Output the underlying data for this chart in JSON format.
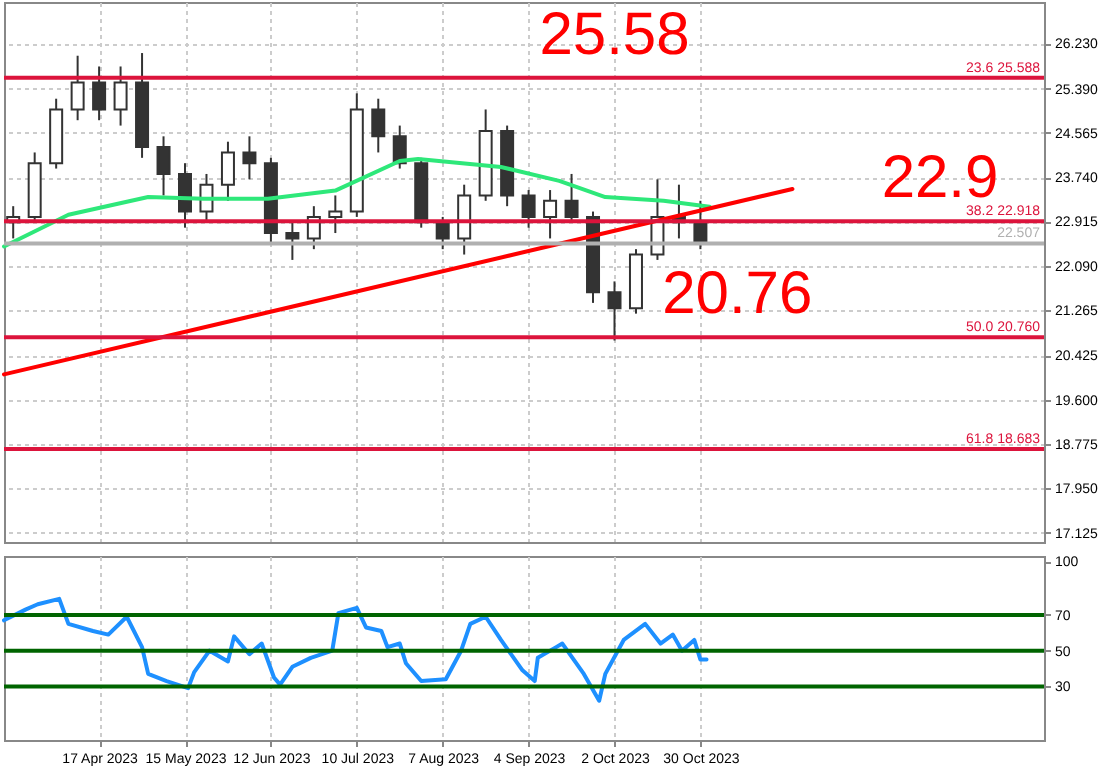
{
  "chart_data": [
    {
      "type": "candlestick",
      "x": [
        "2023-03-20",
        "2023-03-27",
        "2023-04-03",
        "2023-04-10",
        "2023-04-17",
        "2023-04-24",
        "2023-05-01",
        "2023-05-08",
        "2023-05-15",
        "2023-05-22",
        "2023-05-29",
        "2023-06-05",
        "2023-06-12",
        "2023-06-19",
        "2023-06-26",
        "2023-07-03",
        "2023-07-10",
        "2023-07-17",
        "2023-07-24",
        "2023-07-31",
        "2023-08-07",
        "2023-08-14",
        "2023-08-21",
        "2023-08-28",
        "2023-09-04",
        "2023-09-11",
        "2023-09-18",
        "2023-09-25",
        "2023-10-02",
        "2023-10-09",
        "2023-10-16",
        "2023-10-23",
        "2023-10-30"
      ],
      "ohlc": [
        [
          22.9,
          23.2,
          22.6,
          23.0
        ],
        [
          23.0,
          24.2,
          22.9,
          24.0
        ],
        [
          24.0,
          25.2,
          23.9,
          25.0
        ],
        [
          25.0,
          26.0,
          24.8,
          25.5
        ],
        [
          25.5,
          25.8,
          24.8,
          25.0
        ],
        [
          25.0,
          25.8,
          24.7,
          25.5
        ],
        [
          25.5,
          26.05,
          24.1,
          24.3
        ],
        [
          24.3,
          24.5,
          23.4,
          23.8
        ],
        [
          23.8,
          24.0,
          22.8,
          23.1
        ],
        [
          23.1,
          23.8,
          22.9,
          23.6
        ],
        [
          23.6,
          24.4,
          23.3,
          24.2
        ],
        [
          24.2,
          24.5,
          23.7,
          24.0
        ],
        [
          24.0,
          24.1,
          22.5,
          22.7
        ],
        [
          22.7,
          22.9,
          22.2,
          22.6
        ],
        [
          22.6,
          23.2,
          22.4,
          23.0
        ],
        [
          23.0,
          23.4,
          22.7,
          23.1
        ],
        [
          23.1,
          25.3,
          23.0,
          25.0
        ],
        [
          25.0,
          25.2,
          24.2,
          24.5
        ],
        [
          24.5,
          24.7,
          23.9,
          24.0
        ],
        [
          24.0,
          24.1,
          22.8,
          22.9
        ],
        [
          22.9,
          23.0,
          22.4,
          22.6
        ],
        [
          22.6,
          23.6,
          22.3,
          23.4
        ],
        [
          23.4,
          25.0,
          23.3,
          24.6
        ],
        [
          24.6,
          24.7,
          23.2,
          23.4
        ],
        [
          23.4,
          23.5,
          22.8,
          23.0
        ],
        [
          23.0,
          23.5,
          22.6,
          23.3
        ],
        [
          23.3,
          23.8,
          22.9,
          23.0
        ],
        [
          23.0,
          23.1,
          21.4,
          21.6
        ],
        [
          21.6,
          21.8,
          20.7,
          21.3
        ],
        [
          21.3,
          22.4,
          21.2,
          22.3
        ],
        [
          22.3,
          23.7,
          22.2,
          23.0
        ],
        [
          23.0,
          23.6,
          22.6,
          22.9
        ],
        [
          22.9,
          23.3,
          22.4,
          22.51
        ]
      ],
      "series": [
        {
          "type": "line",
          "color": "#2ee87a",
          "x": [
            "2023-03-17",
            "2023-04-07",
            "2023-05-03",
            "2023-05-21",
            "2023-06-11",
            "2023-07-03",
            "2023-07-24",
            "2023-07-30",
            "2023-08-26",
            "2023-09-14",
            "2023-09-29",
            "2023-10-18",
            "2023-11-02"
          ],
          "values": [
            22.45,
            23.04,
            23.37,
            23.34,
            23.34,
            23.49,
            24.04,
            24.08,
            23.93,
            23.67,
            23.37,
            23.3,
            23.19
          ]
        },
        {
          "type": "line",
          "color": "#ff0000",
          "x": [
            "2023-03-17",
            "2023-11-29"
          ],
          "values": [
            20.07,
            23.52
          ]
        }
      ],
      "ref_lines": [
        {
          "axis": "y",
          "value": 25.588,
          "label": "23.6 25.588",
          "color": "#dc143c"
        },
        {
          "axis": "y",
          "value": 22.918,
          "label": "38.2 22.918",
          "color": "#dc143c"
        },
        {
          "axis": "y",
          "value": 20.76,
          "label": "50.0 20.760",
          "color": "#dc143c"
        },
        {
          "axis": "y",
          "value": 18.683,
          "label": "61.8 18.683",
          "color": "#dc143c"
        },
        {
          "axis": "y",
          "value": 22.507,
          "label": "22.507",
          "color": "#b0b0b0"
        }
      ],
      "annotations": [
        "25.58",
        "22.9",
        "20.76"
      ],
      "xlim": [
        "2023-03-17",
        "2024-02-19"
      ],
      "xticks": [
        {
          "value": "2023-04-17",
          "label": null
        },
        {
          "value": "2023-05-15",
          "label": null
        },
        {
          "value": "2023-06-12",
          "label": null
        },
        {
          "value": "2023-07-10",
          "label": null
        },
        {
          "value": "2023-08-07",
          "label": null
        },
        {
          "value": "2023-09-04",
          "label": null
        },
        {
          "value": "2023-10-02",
          "label": null
        },
        {
          "value": "2023-10-30",
          "label": null
        }
      ],
      "ylim": [
        16.95,
        27.0
      ],
      "yticks": [
        {
          "value": 17.125,
          "label": "17.125"
        },
        {
          "value": 17.95,
          "label": "17.950"
        },
        {
          "value": 18.775,
          "label": "18.775"
        },
        {
          "value": 19.6,
          "label": "19.600"
        },
        {
          "value": 20.425,
          "label": "20.425"
        },
        {
          "value": 21.265,
          "label": "21.265"
        },
        {
          "value": 22.09,
          "label": "22.090"
        },
        {
          "value": 22.915,
          "label": "22.915"
        },
        {
          "value": 23.74,
          "label": "23.740"
        },
        {
          "value": 24.565,
          "label": "24.565"
        },
        {
          "value": 25.39,
          "label": "25.390"
        },
        {
          "value": 26.23,
          "label": "26.230"
        }
      ],
      "tick_labels": "y",
      "grid": true
    },
    {
      "type": "line",
      "series": [
        {
          "color": "#1e90ff",
          "x": [
            "2023-03-17",
            "2023-03-24",
            "2023-03-28",
            "2023-04-04",
            "2023-04-07",
            "2023-04-15",
            "2023-04-20",
            "2023-04-26",
            "2023-05-01",
            "2023-05-03",
            "2023-05-09",
            "2023-05-16",
            "2023-05-18",
            "2023-05-23",
            "2023-05-29",
            "2023-05-31",
            "2023-06-05",
            "2023-06-09",
            "2023-06-13",
            "2023-06-15",
            "2023-06-19",
            "2023-06-25",
            "2023-07-02",
            "2023-07-04",
            "2023-07-10",
            "2023-07-13",
            "2023-07-18",
            "2023-07-20",
            "2023-07-24",
            "2023-07-26",
            "2023-07-31",
            "2023-08-08",
            "2023-08-13",
            "2023-08-16",
            "2023-08-21",
            "2023-08-26",
            "2023-09-02",
            "2023-09-06",
            "2023-09-07",
            "2023-09-13",
            "2023-09-15",
            "2023-09-22",
            "2023-09-27",
            "2023-09-29",
            "2023-10-05",
            "2023-10-12",
            "2023-10-17",
            "2023-10-21",
            "2023-10-24",
            "2023-10-28",
            "2023-10-30",
            "2023-11-01"
          ],
          "values": [
            67,
            73,
            76,
            79,
            65,
            61,
            59,
            69,
            52,
            37,
            33,
            29,
            38,
            50,
            44,
            58,
            48,
            54,
            35,
            31,
            41,
            46,
            50,
            71,
            74,
            63,
            61,
            52,
            54,
            43,
            33,
            34,
            50,
            65,
            69,
            56,
            39,
            33,
            46,
            52,
            54,
            37,
            22,
            37,
            56,
            65,
            54,
            59,
            50,
            56,
            45,
            45
          ]
        }
      ],
      "ref_lines": [
        {
          "axis": "y",
          "value": 70,
          "color": "#006400"
        },
        {
          "axis": "y",
          "value": 50,
          "color": "#006400"
        },
        {
          "axis": "y",
          "value": 30,
          "color": "#006400"
        }
      ],
      "xlim": [
        "2023-03-17",
        "2024-02-19"
      ],
      "xticks": [
        {
          "value": "2023-04-17",
          "label": "17 Apr 2023"
        },
        {
          "value": "2023-05-15",
          "label": "15 May 2023"
        },
        {
          "value": "2023-06-12",
          "label": "12 Jun 2023"
        },
        {
          "value": "2023-07-10",
          "label": "10 Jul 2023"
        },
        {
          "value": "2023-08-07",
          "label": "7 Aug 2023"
        },
        {
          "value": "2023-09-04",
          "label": "4 Sep 2023"
        },
        {
          "value": "2023-10-02",
          "label": "2 Oct 2023"
        },
        {
          "value": "2023-10-30",
          "label": "30 Oct 2023"
        }
      ],
      "ylim": [
        0,
        103
      ],
      "yticks": [
        30,
        50,
        70,
        100
      ],
      "grid": "x"
    }
  ]
}
